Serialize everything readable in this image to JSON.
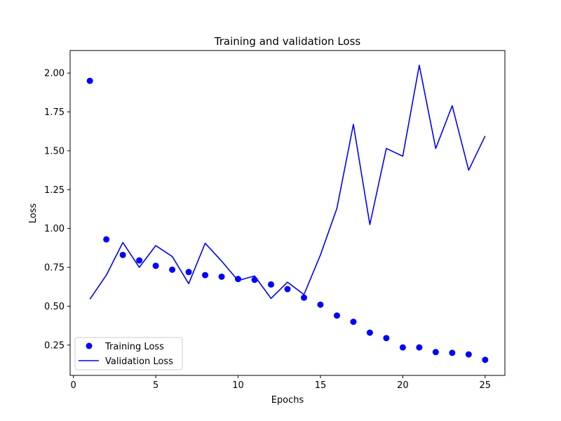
{
  "chart_data": {
    "type": "line",
    "title": "Training and validation Loss",
    "xlabel": "Epochs",
    "ylabel": "Loss",
    "xlim": [
      -0.2,
      26.2
    ],
    "ylim": [
      0.055,
      2.145
    ],
    "xticks": [
      0,
      5,
      10,
      15,
      20,
      25
    ],
    "xtick_labels": [
      "0",
      "5",
      "10",
      "15",
      "20",
      "25"
    ],
    "yticks": [
      0.25,
      0.5,
      0.75,
      1.0,
      1.25,
      1.5,
      1.75,
      2.0
    ],
    "ytick_labels": [
      "0.25",
      "0.50",
      "0.75",
      "1.00",
      "1.25",
      "1.50",
      "1.75",
      "2.00"
    ],
    "x": [
      1,
      2,
      3,
      4,
      5,
      6,
      7,
      8,
      9,
      10,
      11,
      12,
      13,
      14,
      15,
      16,
      17,
      18,
      19,
      20,
      21,
      22,
      23,
      24,
      25
    ],
    "series": [
      {
        "name": "Training Loss",
        "style": "points",
        "color": "#0000ff",
        "values": [
          1.95,
          0.93,
          0.83,
          0.795,
          0.76,
          0.735,
          0.72,
          0.7,
          0.69,
          0.675,
          0.67,
          0.64,
          0.61,
          0.555,
          0.51,
          0.44,
          0.4,
          0.33,
          0.295,
          0.235,
          0.235,
          0.205,
          0.2,
          0.19,
          0.155
        ]
      },
      {
        "name": "Validation Loss",
        "style": "line",
        "color": "#0000ff",
        "values": [
          0.545,
          0.7,
          0.91,
          0.75,
          0.89,
          0.82,
          0.645,
          0.905,
          0.79,
          0.665,
          0.695,
          0.55,
          0.655,
          0.575,
          0.83,
          1.13,
          1.67,
          1.025,
          1.515,
          1.465,
          2.05,
          1.515,
          1.79,
          1.375,
          1.595
        ]
      }
    ],
    "legend": {
      "placement": "lower-left"
    },
    "grid": false
  }
}
